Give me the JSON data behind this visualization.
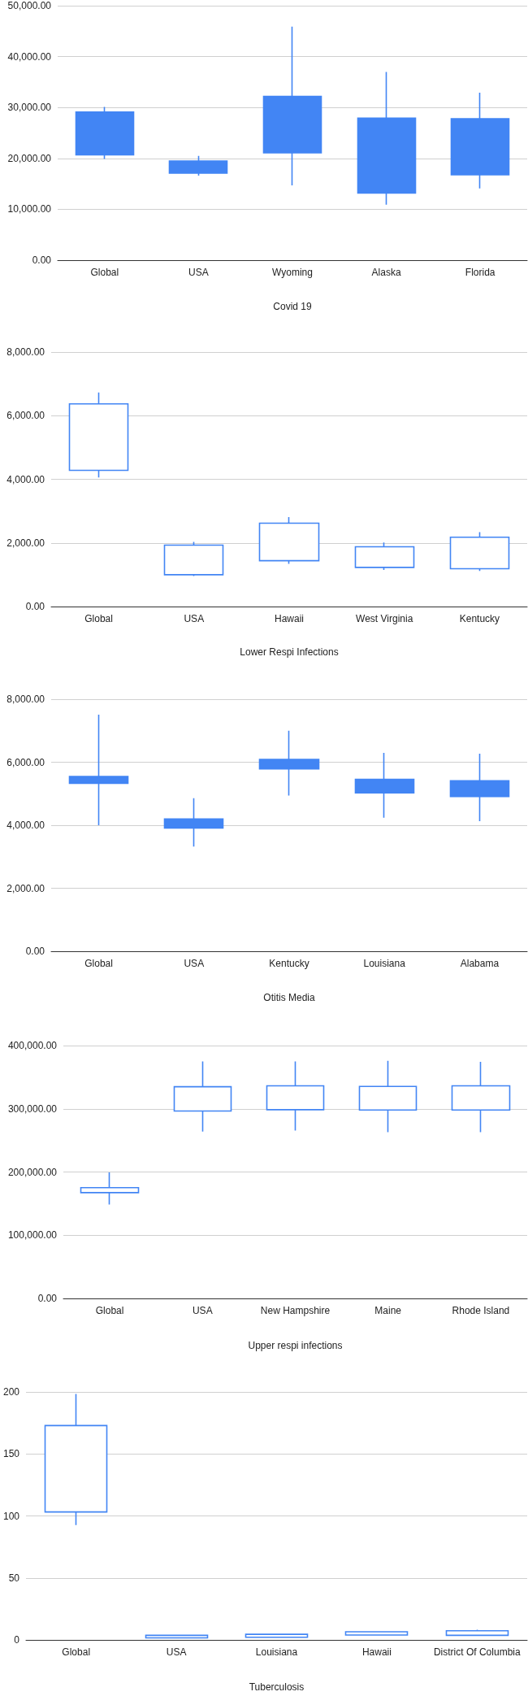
{
  "chart_data": [
    {
      "type": "candlestick",
      "xlabel": "Covid 19",
      "categories": [
        "Global",
        "USA",
        "Wyoming",
        "Alaska",
        "Florida"
      ],
      "color": "#4285f4",
      "ohlc": [
        [
          29100,
          30100,
          19900,
          20700
        ],
        [
          19500,
          20500,
          16600,
          17100
        ],
        [
          32200,
          45900,
          14700,
          21100
        ],
        [
          27900,
          37000,
          10900,
          13200
        ],
        [
          27800,
          32900,
          14100,
          16800
        ]
      ],
      "ylim": [
        0,
        50000
      ],
      "yticks": [
        {
          "value": 0,
          "label": "0.00"
        },
        {
          "value": 10000,
          "label": "10,000.00"
        },
        {
          "value": 20000,
          "label": "20,000.00"
        },
        {
          "value": 30000,
          "label": "30,000.00"
        },
        {
          "value": 40000,
          "label": "40,000.00"
        },
        {
          "value": 50000,
          "label": "50,000.00"
        }
      ],
      "grid": true
    },
    {
      "type": "candlestick",
      "xlabel": "Lower Respi Infections",
      "categories": [
        "Global",
        "USA",
        "Hawaii",
        "West Virginia",
        "Kentucky"
      ],
      "color": "#4285f4",
      "ohlc": [
        [
          4280,
          6730,
          4060,
          6370
        ],
        [
          1000,
          2030,
          960,
          1930
        ],
        [
          1440,
          2810,
          1340,
          2620
        ],
        [
          1230,
          2010,
          1150,
          1880
        ],
        [
          1190,
          2340,
          1120,
          2180
        ]
      ],
      "ylim": [
        0,
        8000
      ],
      "yticks": [
        {
          "value": 0,
          "label": "0.00"
        },
        {
          "value": 2000,
          "label": "2,000.00"
        },
        {
          "value": 4000,
          "label": "4,000.00"
        },
        {
          "value": 6000,
          "label": "6,000.00"
        },
        {
          "value": 8000,
          "label": "8,000.00"
        }
      ],
      "grid": true
    },
    {
      "type": "candlestick",
      "xlabel": "Otitis Media",
      "categories": [
        "Global",
        "USA",
        "Kentucky",
        "Louisiana",
        "Alabama"
      ],
      "color": "#4285f4",
      "ohlc": [
        [
          5550,
          7510,
          4000,
          5330
        ],
        [
          4200,
          4860,
          3320,
          3910
        ],
        [
          6090,
          7000,
          4940,
          5790
        ],
        [
          5460,
          6300,
          4240,
          5030
        ],
        [
          5410,
          6270,
          4130,
          4910
        ]
      ],
      "ylim": [
        0,
        8000
      ],
      "yticks": [
        {
          "value": 0,
          "label": "0.00"
        },
        {
          "value": 2000,
          "label": "2,000.00"
        },
        {
          "value": 4000,
          "label": "4,000.00"
        },
        {
          "value": 6000,
          "label": "6,000.00"
        },
        {
          "value": 8000,
          "label": "8,000.00"
        }
      ],
      "grid": true
    },
    {
      "type": "candlestick",
      "xlabel": "Upper respi infections",
      "categories": [
        "Global",
        "USA",
        "New Hampshire",
        "Maine",
        "Rhode Island"
      ],
      "color": "#4285f4",
      "ohlc": [
        [
          167300,
          199400,
          148400,
          175200
        ],
        [
          296500,
          374800,
          264000,
          334900
        ],
        [
          298600,
          374800,
          265500,
          336400
        ],
        [
          298100,
          375800,
          262900,
          335400
        ],
        [
          298100,
          374300,
          262900,
          336400
        ]
      ],
      "ylim": [
        0,
        400000
      ],
      "yticks": [
        {
          "value": 0,
          "label": "0.00"
        },
        {
          "value": 100000,
          "label": "100,000.00"
        },
        {
          "value": 200000,
          "label": "200,000.00"
        },
        {
          "value": 300000,
          "label": "300,000.00"
        },
        {
          "value": 400000,
          "label": "400,000.00"
        }
      ],
      "grid": true
    },
    {
      "type": "candlestick",
      "xlabel": "Tuberculosis",
      "categories": [
        "Global",
        "USA",
        "Louisiana",
        "Hawaii",
        "District Of Columbia"
      ],
      "color": "#4285f4",
      "ohlc": [
        [
          103.2,
          198.4,
          92.6,
          172.9
        ],
        [
          1.6,
          3.7,
          1.6,
          3.7
        ],
        [
          2.1,
          4.5,
          2.1,
          4.5
        ],
        [
          3.9,
          7.1,
          3.9,
          6.6
        ],
        [
          3.7,
          8.2,
          3.7,
          7.4
        ]
      ],
      "ylim": [
        0,
        200
      ],
      "yticks": [
        0,
        50,
        100,
        150,
        200
      ],
      "grid": true
    }
  ]
}
